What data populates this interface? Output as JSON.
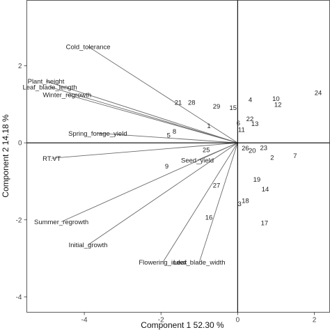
{
  "chart_data": {
    "type": "biplot",
    "xlabel": "Component 1 52.30 %",
    "ylabel": "Component 2 14.18 %",
    "xlim": [
      -5.5,
      2.4
    ],
    "ylim": [
      -4.4,
      3.7
    ],
    "x_ticks": [
      -4,
      -2,
      0,
      2
    ],
    "y_ticks": [
      2,
      0,
      -2,
      -4
    ],
    "x_tick_labels": [
      "-4",
      "-2",
      "0",
      "2"
    ],
    "y_tick_labels": [
      "2",
      "0",
      "-2",
      "-4"
    ],
    "grid": false,
    "zero_lines": true,
    "line_color": "#6a6a6a",
    "variables": [
      {
        "name": "Cold_tolerance",
        "x": -3.9,
        "y": 2.5
      },
      {
        "name": "Plant_height",
        "x": -5.0,
        "y": 1.6
      },
      {
        "name": "Leaf_blade_length",
        "x": -4.9,
        "y": 1.45
      },
      {
        "name": "Winter_regrowth",
        "x": -4.45,
        "y": 1.25
      },
      {
        "name": "Spring_forage_yield",
        "x": -3.65,
        "y": 0.25
      },
      {
        "name": "RT.VT",
        "x": -4.85,
        "y": -0.4
      },
      {
        "name": "Summer_regrowth",
        "x": -4.6,
        "y": -2.05
      },
      {
        "name": "Initial_growth",
        "x": -3.9,
        "y": -2.65
      },
      {
        "name": "Flowering_index",
        "x": -1.95,
        "y": -3.1
      },
      {
        "name": "Leaf_blade_width",
        "x": -1.0,
        "y": -3.1
      },
      {
        "name": "Seed_yield",
        "x": -1.05,
        "y": -0.45
      }
    ],
    "observations": [
      {
        "label": "1",
        "x": -0.75,
        "y": 0.45
      },
      {
        "label": "2",
        "x": 0.9,
        "y": -0.38
      },
      {
        "label": "3",
        "x": 0.05,
        "y": -1.58
      },
      {
        "label": "4",
        "x": 0.33,
        "y": 1.12
      },
      {
        "label": "5",
        "x": -1.8,
        "y": 0.2
      },
      {
        "label": "6",
        "x": 0.02,
        "y": 0.52
      },
      {
        "label": "7",
        "x": 1.5,
        "y": -0.33
      },
      {
        "label": "8",
        "x": -1.65,
        "y": 0.3
      },
      {
        "label": "9",
        "x": -1.85,
        "y": -0.6
      },
      {
        "label": "10",
        "x": 1.0,
        "y": 1.15
      },
      {
        "label": "11",
        "x": 0.1,
        "y": 0.35
      },
      {
        "label": "12",
        "x": 1.05,
        "y": 1.0
      },
      {
        "label": "13",
        "x": 0.45,
        "y": 0.5
      },
      {
        "label": "14",
        "x": 0.72,
        "y": -1.2
      },
      {
        "label": "15",
        "x": -0.12,
        "y": 0.92
      },
      {
        "label": "16",
        "x": -0.75,
        "y": -1.93
      },
      {
        "label": "17",
        "x": 0.7,
        "y": -2.08
      },
      {
        "label": "18",
        "x": 0.2,
        "y": -1.5
      },
      {
        "label": "19",
        "x": 0.5,
        "y": -0.95
      },
      {
        "label": "20",
        "x": 0.38,
        "y": -0.2
      },
      {
        "label": "21",
        "x": -1.55,
        "y": 1.05
      },
      {
        "label": "22",
        "x": 0.32,
        "y": 0.63
      },
      {
        "label": "23",
        "x": 0.68,
        "y": -0.12
      },
      {
        "label": "24",
        "x": 2.1,
        "y": 1.3
      },
      {
        "label": "25",
        "x": -0.82,
        "y": -0.18
      },
      {
        "label": "26",
        "x": 0.2,
        "y": -0.13
      },
      {
        "label": "27",
        "x": -0.55,
        "y": -1.1
      },
      {
        "label": "28",
        "x": -1.2,
        "y": 1.05
      },
      {
        "label": "29",
        "x": -0.55,
        "y": 0.95
      }
    ]
  }
}
